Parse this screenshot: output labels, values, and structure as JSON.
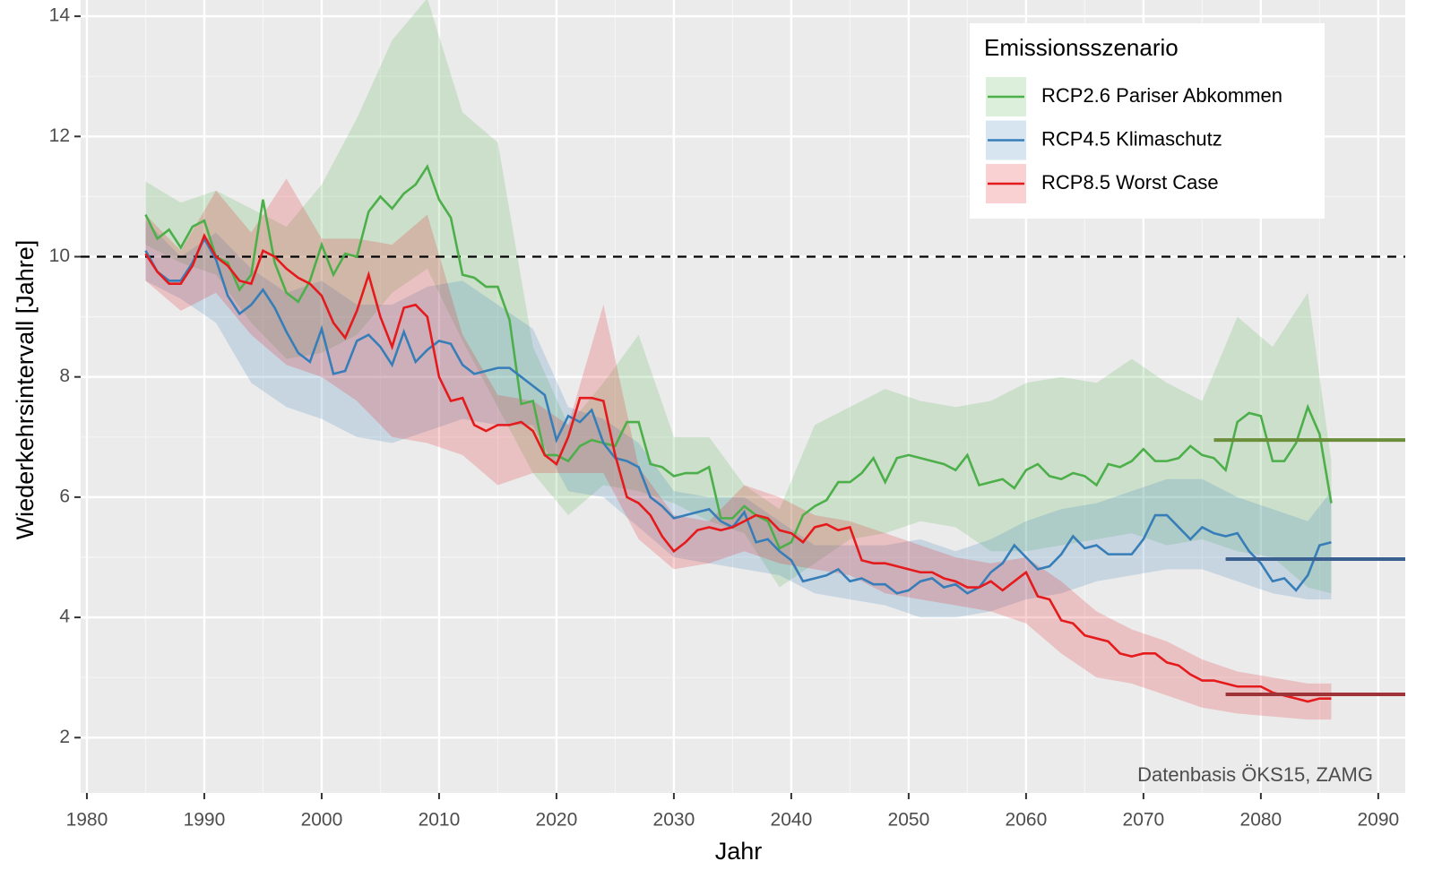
{
  "chart_data": {
    "type": "line",
    "xlabel": "Jahr",
    "ylabel": "Wiederkehrsintervall [Jahre]",
    "annotation": "Datenbasis ÖKS15, ZAMG",
    "legend_title": "Emissionsszenario",
    "legend_position": "top-right",
    "grid": true,
    "xlim": [
      1979.47,
      2092.3
    ],
    "ylim": [
      1.08,
      14.27
    ],
    "xticks": [
      1980,
      1990,
      2000,
      2010,
      2020,
      2030,
      2040,
      2050,
      2060,
      2070,
      2080,
      2090
    ],
    "yticks": [
      2,
      4,
      6,
      8,
      10,
      12,
      14
    ],
    "hline": {
      "y": 10,
      "color": "#000000",
      "dash": true
    },
    "x": [
      1985,
      1986,
      1987,
      1988,
      1989,
      1990,
      1991,
      1992,
      1993,
      1994,
      1995,
      1996,
      1997,
      1998,
      1999,
      2000,
      2001,
      2002,
      2003,
      2004,
      2005,
      2006,
      2007,
      2008,
      2009,
      2010,
      2011,
      2012,
      2013,
      2014,
      2015,
      2016,
      2017,
      2018,
      2019,
      2020,
      2021,
      2022,
      2023,
      2024,
      2025,
      2026,
      2027,
      2028,
      2029,
      2030,
      2031,
      2032,
      2033,
      2034,
      2035,
      2036,
      2037,
      2038,
      2039,
      2040,
      2041,
      2042,
      2043,
      2044,
      2045,
      2046,
      2047,
      2048,
      2049,
      2050,
      2051,
      2052,
      2053,
      2054,
      2055,
      2056,
      2057,
      2058,
      2059,
      2060,
      2061,
      2062,
      2063,
      2064,
      2065,
      2066,
      2067,
      2068,
      2069,
      2070,
      2071,
      2072,
      2073,
      2074,
      2075,
      2076,
      2077,
      2078,
      2079,
      2080,
      2081,
      2082,
      2083,
      2084,
      2085,
      2086
    ],
    "series": [
      {
        "name": "RCP2.6 Pariser Abkommen",
        "color": "#4daf4a",
        "values": [
          10.7,
          10.3,
          10.45,
          10.15,
          10.5,
          10.6,
          10.0,
          9.9,
          9.45,
          9.7,
          10.95,
          9.9,
          9.4,
          9.25,
          9.6,
          10.2,
          9.7,
          10.05,
          10.0,
          10.75,
          11.0,
          10.8,
          11.05,
          11.2,
          11.5,
          10.95,
          10.65,
          9.7,
          9.65,
          9.5,
          9.5,
          8.95,
          7.55,
          7.6,
          6.7,
          6.7,
          6.6,
          6.85,
          6.95,
          6.9,
          6.85,
          7.25,
          7.25,
          6.55,
          6.5,
          6.35,
          6.4,
          6.4,
          6.5,
          5.65,
          5.65,
          5.85,
          5.7,
          5.6,
          5.15,
          5.25,
          5.7,
          5.85,
          5.95,
          6.25,
          6.25,
          6.4,
          6.65,
          6.25,
          6.65,
          6.7,
          6.65,
          6.6,
          6.55,
          6.45,
          6.7,
          6.2,
          6.25,
          6.3,
          6.15,
          6.45,
          6.55,
          6.35,
          6.3,
          6.4,
          6.35,
          6.2,
          6.55,
          6.5,
          6.6,
          6.8,
          6.6,
          6.6,
          6.65,
          6.85,
          6.7,
          6.65,
          6.45,
          7.25,
          7.4,
          7.35,
          6.6,
          6.6,
          6.9,
          7.5,
          7.05,
          5.9
        ],
        "band": {
          "x": [
            1985,
            1988,
            1991,
            1994,
            1997,
            2000,
            2003,
            2006,
            2009,
            2012,
            2015,
            2018,
            2021,
            2024,
            2027,
            2030,
            2033,
            2036,
            2039,
            2042,
            2045,
            2048,
            2051,
            2054,
            2057,
            2060,
            2063,
            2066,
            2069,
            2072,
            2075,
            2078,
            2081,
            2084,
            2086
          ],
          "upper": [
            11.25,
            10.9,
            11.1,
            10.8,
            10.5,
            11.2,
            12.3,
            13.6,
            14.3,
            12.4,
            11.9,
            8.5,
            7.2,
            7.9,
            8.7,
            7.0,
            7.0,
            6.2,
            5.8,
            7.2,
            7.5,
            7.8,
            7.6,
            7.5,
            7.6,
            7.9,
            8.0,
            7.9,
            8.3,
            7.9,
            7.6,
            9.0,
            8.5,
            9.4,
            6.6
          ],
          "lower": [
            10.2,
            9.9,
            9.7,
            8.9,
            8.3,
            8.4,
            8.7,
            9.4,
            9.8,
            8.6,
            7.5,
            6.4,
            5.7,
            6.2,
            6.1,
            5.9,
            5.6,
            5.4,
            4.5,
            4.9,
            5.3,
            5.4,
            5.6,
            5.5,
            5.1,
            5.1,
            5.2,
            5.3,
            5.4,
            5.2,
            5.3,
            5.1,
            5.0,
            4.5,
            4.4
          ]
        },
        "reference": {
          "x": [
            2076,
            2095
          ],
          "y": 6.95,
          "color": "#6b8e3a"
        }
      },
      {
        "name": "RCP4.5 Klimaschutz",
        "color": "#377eb8",
        "values": [
          10.1,
          9.75,
          9.6,
          9.6,
          9.9,
          10.3,
          9.95,
          9.35,
          9.05,
          9.2,
          9.45,
          9.15,
          8.75,
          8.4,
          8.25,
          8.8,
          8.05,
          8.1,
          8.6,
          8.7,
          8.5,
          8.2,
          8.75,
          8.25,
          8.45,
          8.6,
          8.55,
          8.2,
          8.05,
          8.1,
          8.15,
          8.15,
          8.0,
          7.85,
          7.7,
          6.95,
          7.35,
          7.25,
          7.45,
          6.9,
          6.65,
          6.6,
          6.5,
          6.0,
          5.85,
          5.65,
          5.7,
          5.75,
          5.8,
          5.6,
          5.5,
          5.75,
          5.25,
          5.3,
          5.1,
          4.95,
          4.6,
          4.65,
          4.7,
          4.8,
          4.6,
          4.65,
          4.55,
          4.55,
          4.4,
          4.45,
          4.6,
          4.65,
          4.5,
          4.55,
          4.4,
          4.5,
          4.75,
          4.9,
          5.2,
          5.0,
          4.8,
          4.85,
          5.05,
          5.35,
          5.15,
          5.2,
          5.05,
          5.05,
          5.05,
          5.3,
          5.7,
          5.7,
          5.5,
          5.3,
          5.5,
          5.4,
          5.35,
          5.4,
          5.1,
          4.9,
          4.6,
          4.65,
          4.45,
          4.7,
          5.2,
          5.25
        ],
        "band": {
          "x": [
            1985,
            1988,
            1991,
            1994,
            1997,
            2000,
            2003,
            2006,
            2009,
            2012,
            2015,
            2018,
            2021,
            2024,
            2027,
            2030,
            2033,
            2036,
            2039,
            2042,
            2045,
            2048,
            2051,
            2054,
            2057,
            2060,
            2063,
            2066,
            2069,
            2072,
            2075,
            2078,
            2081,
            2084,
            2086
          ],
          "upper": [
            10.6,
            10.0,
            10.4,
            9.8,
            9.4,
            9.6,
            9.2,
            9.2,
            9.5,
            9.6,
            9.2,
            8.8,
            7.5,
            7.3,
            6.9,
            6.1,
            6.0,
            6.0,
            5.6,
            5.2,
            5.2,
            5.2,
            5.3,
            5.1,
            5.3,
            5.6,
            5.8,
            5.9,
            6.1,
            6.3,
            6.3,
            6.0,
            5.8,
            5.6,
            6.1
          ],
          "lower": [
            9.6,
            9.3,
            8.9,
            7.9,
            7.5,
            7.3,
            7.0,
            6.9,
            7.1,
            7.3,
            7.2,
            7.2,
            6.1,
            6.0,
            5.5,
            5.0,
            4.9,
            4.8,
            4.7,
            4.4,
            4.3,
            4.2,
            4.0,
            4.0,
            4.1,
            4.3,
            4.4,
            4.6,
            4.7,
            4.8,
            4.8,
            4.6,
            4.4,
            4.3,
            4.3
          ]
        },
        "reference": {
          "x": [
            2077,
            2095
          ],
          "y": 4.97,
          "color": "#3a6090"
        }
      },
      {
        "name": "RCP8.5 Worst Case",
        "color": "#e41a1c",
        "values": [
          10.05,
          9.75,
          9.55,
          9.55,
          9.85,
          10.35,
          10.0,
          9.85,
          9.6,
          9.55,
          10.1,
          10.0,
          9.8,
          9.65,
          9.55,
          9.35,
          8.9,
          8.65,
          9.1,
          9.7,
          9.0,
          8.5,
          9.15,
          9.2,
          9.0,
          8.0,
          7.6,
          7.65,
          7.2,
          7.1,
          7.2,
          7.2,
          7.25,
          7.1,
          6.7,
          6.55,
          7.0,
          7.65,
          7.65,
          7.6,
          6.7,
          6.0,
          5.9,
          5.7,
          5.35,
          5.1,
          5.25,
          5.45,
          5.5,
          5.45,
          5.5,
          5.6,
          5.7,
          5.65,
          5.45,
          5.4,
          5.25,
          5.5,
          5.55,
          5.45,
          5.5,
          4.95,
          4.9,
          4.9,
          4.85,
          4.8,
          4.75,
          4.75,
          4.65,
          4.6,
          4.5,
          4.5,
          4.6,
          4.45,
          4.6,
          4.75,
          4.35,
          4.3,
          3.95,
          3.9,
          3.7,
          3.65,
          3.6,
          3.4,
          3.35,
          3.4,
          3.4,
          3.25,
          3.2,
          3.05,
          2.95,
          2.95,
          2.9,
          2.85,
          2.85,
          2.85,
          2.75,
          2.7,
          2.65,
          2.6,
          2.65,
          2.65
        ],
        "band": {
          "x": [
            1985,
            1988,
            1991,
            1994,
            1997,
            2000,
            2003,
            2006,
            2009,
            2012,
            2015,
            2018,
            2021,
            2024,
            2027,
            2030,
            2033,
            2036,
            2039,
            2042,
            2045,
            2048,
            2051,
            2054,
            2057,
            2060,
            2063,
            2066,
            2069,
            2072,
            2075,
            2078,
            2081,
            2084,
            2086
          ],
          "upper": [
            10.7,
            10.1,
            11.1,
            10.4,
            11.3,
            10.3,
            10.3,
            10.2,
            10.7,
            8.7,
            7.7,
            7.6,
            7.2,
            9.2,
            6.5,
            5.7,
            5.6,
            6.2,
            6.0,
            5.7,
            5.6,
            5.4,
            5.2,
            5.0,
            4.9,
            5.0,
            4.6,
            4.1,
            3.8,
            3.6,
            3.3,
            3.1,
            3.0,
            2.9,
            2.9
          ],
          "lower": [
            9.6,
            9.1,
            9.4,
            8.7,
            8.2,
            8.0,
            7.6,
            7.0,
            6.9,
            6.7,
            6.2,
            6.4,
            6.4,
            6.4,
            5.3,
            4.8,
            4.9,
            5.1,
            4.9,
            4.8,
            4.7,
            4.4,
            4.3,
            4.2,
            4.1,
            3.9,
            3.4,
            3.0,
            2.9,
            2.7,
            2.5,
            2.4,
            2.35,
            2.3,
            2.3
          ]
        },
        "reference": {
          "x": [
            2077,
            2095
          ],
          "y": 2.72,
          "color": "#9e3438"
        }
      }
    ]
  }
}
